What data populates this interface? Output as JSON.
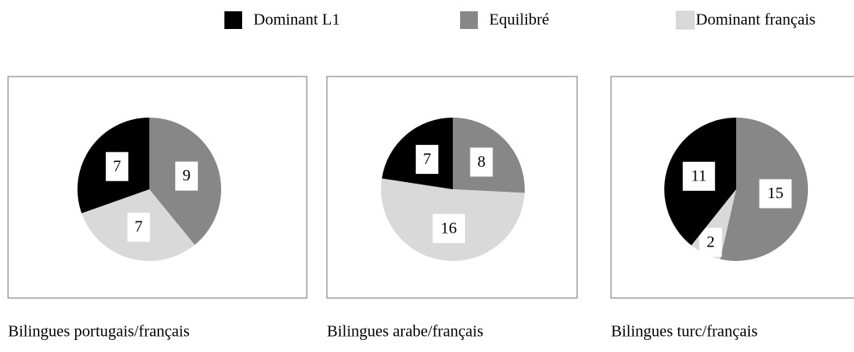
{
  "legend": {
    "labels": [
      "Dominant L1",
      "Equilibré",
      "Dominant français"
    ],
    "colors": [
      "#000000",
      "#878787",
      "#d9d9d9"
    ]
  },
  "chart_data": [
    {
      "type": "pie",
      "title": "Bilingues portugais/français",
      "values": [
        7,
        9,
        7
      ]
    },
    {
      "type": "pie",
      "title": "Bilingues arabe/français",
      "values": [
        7,
        8,
        16
      ]
    },
    {
      "type": "pie",
      "title": "Bilingues turc/français",
      "values": [
        11,
        15,
        2
      ]
    }
  ]
}
